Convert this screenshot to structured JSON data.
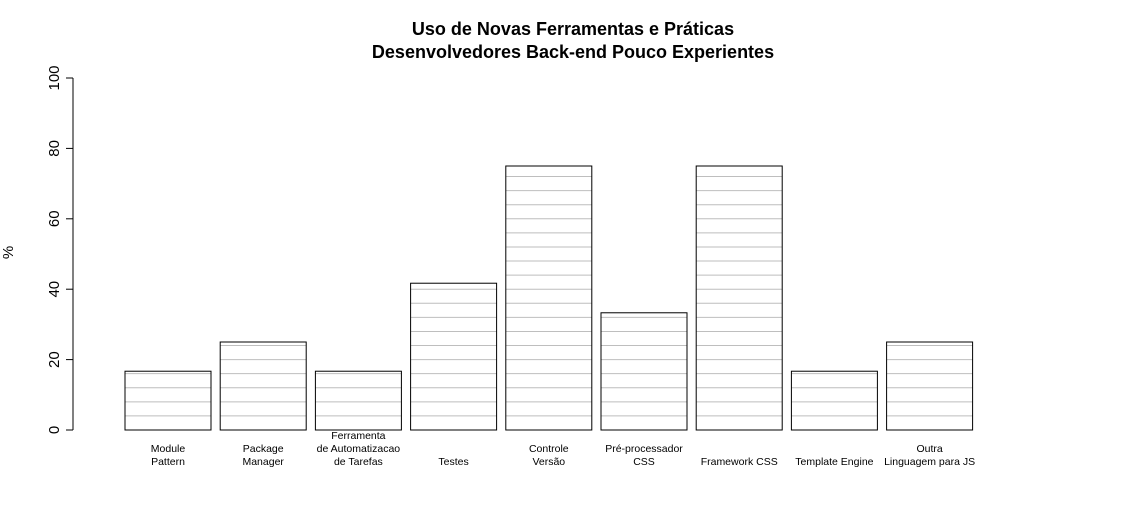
{
  "chart_data": {
    "type": "bar",
    "title_lines": [
      "Uso de Novas Ferramentas e Práticas",
      "Desenvolvedores Back-end Pouco Experientes"
    ],
    "xlabel": "",
    "ylabel": "%",
    "ylim": [
      0,
      100
    ],
    "yticks": [
      0,
      20,
      40,
      60,
      80,
      100
    ],
    "grid": "horizontal lines inside bars only",
    "categories": [
      [
        "Module",
        "Pattern"
      ],
      [
        "Package",
        "Manager"
      ],
      [
        "Ferramenta",
        "de Automatizacao",
        "de Tarefas"
      ],
      [
        "Testes"
      ],
      [
        "Controle",
        "Versão"
      ],
      [
        "Pré-processador",
        "CSS"
      ],
      [
        "Framework CSS"
      ],
      [
        "Template Engine"
      ],
      [
        "Outra",
        "Linguagem para JS"
      ]
    ],
    "values": [
      16.7,
      25.0,
      16.7,
      41.7,
      75.0,
      33.3,
      75.0,
      16.7,
      25.0
    ],
    "colors": {
      "bar_fill": "#ffffff",
      "bar_border": "#000000",
      "grid": "#bebebe"
    }
  }
}
